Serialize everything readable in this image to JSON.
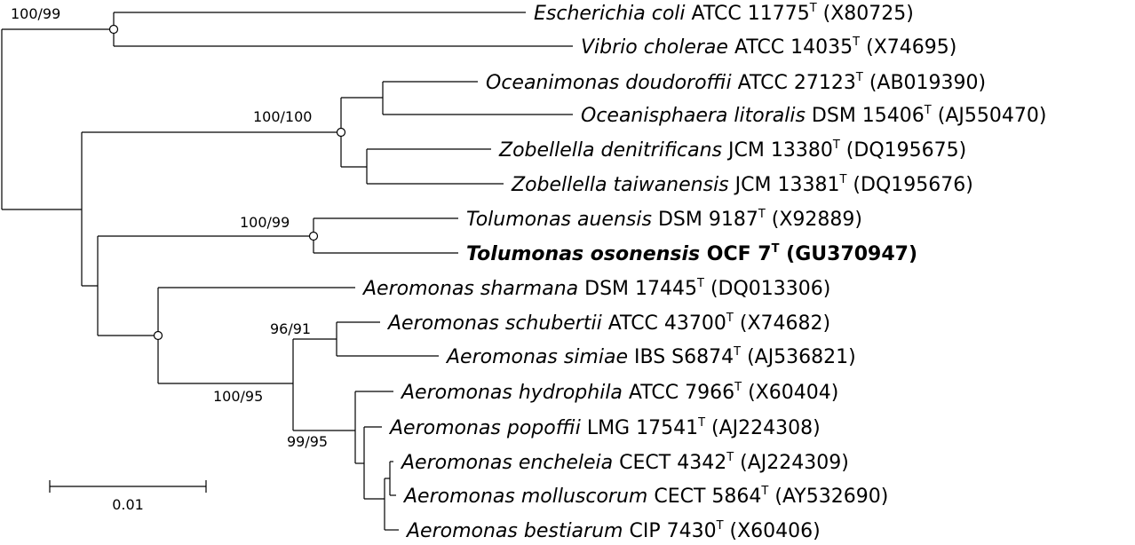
{
  "leaves": [
    {
      "species": "Escherichia coli",
      "strain": "ATCC 11775",
      "type": "T",
      "accession": "(X80725)",
      "bold": false
    },
    {
      "species": "Vibrio cholerae",
      "strain": "ATCC 14035",
      "type": "T",
      "accession": "(X74695)",
      "bold": false
    },
    {
      "species": "Oceanimonas doudoroffii",
      "strain": "ATCC 27123",
      "type": "T",
      "accession": "(AB019390)",
      "bold": false
    },
    {
      "species": "Oceanisphaera litoralis",
      "strain": "DSM 15406",
      "type": "T",
      "accession": "(AJ550470)",
      "bold": false
    },
    {
      "species": "Zobellella denitrificans",
      "strain": "JCM 13380",
      "type": "T",
      "accession": "(DQ195675)",
      "bold": false
    },
    {
      "species": "Zobellella taiwanensis",
      "strain": "JCM 13381",
      "type": "T",
      "accession": "(DQ195676)",
      "bold": false
    },
    {
      "species": "Tolumonas auensis",
      "strain": "DSM 9187",
      "type": "T",
      "accession": "(X92889)",
      "bold": false
    },
    {
      "species": "Tolumonas osonensis",
      "strain": "OCF 7",
      "type": "T",
      "accession": "(GU370947)",
      "bold": true
    },
    {
      "species": "Aeromonas sharmana",
      "strain": "DSM 17445",
      "type": "T",
      "accession": "(DQ013306)",
      "bold": false
    },
    {
      "species": "Aeromonas schubertii",
      "strain": "ATCC 43700",
      "type": "T",
      "accession": "(X74682)",
      "bold": false
    },
    {
      "species": "Aeromonas simiae",
      "strain": "IBS S6874",
      "type": "T",
      "accession": "(AJ536821)",
      "bold": false
    },
    {
      "species": "Aeromonas hydrophila",
      "strain": "ATCC 7966",
      "type": "T",
      "accession": "(X60404)",
      "bold": false
    },
    {
      "species": "Aeromonas popoffii",
      "strain": "LMG 17541",
      "type": "T",
      "accession": "(AJ224308)",
      "bold": false
    },
    {
      "species": "Aeromonas encheleia",
      "strain": "CECT 4342",
      "type": "T",
      "accession": "(AJ224309)",
      "bold": false
    },
    {
      "species": "Aeromonas molluscorum",
      "strain": "CECT 5864",
      "type": "T",
      "accession": "(AY532690)",
      "bold": false
    },
    {
      "species": "Aeromonas bestiarum",
      "strain": "CIP 7430",
      "type": "T",
      "accession": "(X60406)",
      "bold": false
    }
  ],
  "support_values": {
    "ecoli_vibrio": "100/99",
    "oceanimonas_zobellella": "100/100",
    "tolumonas": "100/99",
    "schubertii_simiae": "96/91",
    "aeromonas_core": "100/95",
    "hydrophila_group": "99/95"
  },
  "scale_bar": {
    "value": 0.01,
    "label": "0.01"
  }
}
